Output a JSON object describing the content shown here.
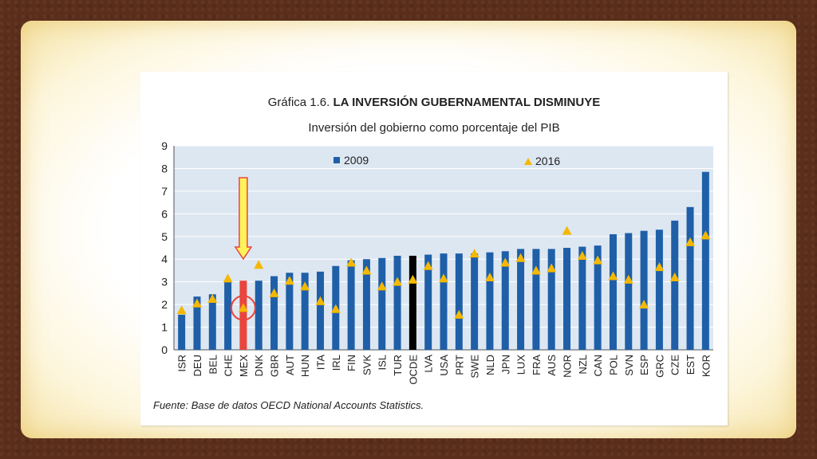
{
  "chart_data": {
    "type": "bar",
    "title_prefix": "Gráfica 1.6.",
    "title_main": "LA INVERSIÓN GUBERNAMENTAL DISMINUYE",
    "subtitle": "Inversión del gobierno como porcentaje del PIB",
    "ylim": [
      0,
      9
    ],
    "yticks": [
      0,
      1,
      2,
      3,
      4,
      5,
      6,
      7,
      8,
      9
    ],
    "grid": true,
    "legend_position": "top",
    "categories": [
      "ISR",
      "DEU",
      "BEL",
      "CHE",
      "MEX",
      "DNK",
      "GBR",
      "AUT",
      "HUN",
      "ITA",
      "IRL",
      "FIN",
      "SVK",
      "ISL",
      "TUR",
      "OCDE",
      "LVA",
      "USA",
      "PRT",
      "SWE",
      "NLD",
      "JPN",
      "LUX",
      "FRA",
      "AUS",
      "NOR",
      "NZL",
      "CAN",
      "POL",
      "SVN",
      "ESP",
      "GRC",
      "CZE",
      "EST",
      "KOR"
    ],
    "series": [
      {
        "name": "2009",
        "kind": "bar",
        "color": "#1f5fa8",
        "values": [
          1.55,
          2.35,
          2.45,
          3.0,
          3.05,
          3.05,
          3.25,
          3.4,
          3.4,
          3.45,
          3.7,
          3.95,
          4.0,
          4.05,
          4.15,
          4.15,
          4.2,
          4.25,
          4.25,
          4.25,
          4.3,
          4.35,
          4.45,
          4.45,
          4.45,
          4.5,
          4.55,
          4.6,
          5.1,
          5.15,
          5.25,
          5.3,
          5.7,
          6.3,
          7.85
        ]
      },
      {
        "name": "2016",
        "kind": "marker",
        "color": "#f5b800",
        "values": [
          1.75,
          2.05,
          2.25,
          3.15,
          1.85,
          3.75,
          2.5,
          3.05,
          2.8,
          2.15,
          1.8,
          3.85,
          3.5,
          2.8,
          3.0,
          3.1,
          3.7,
          3.15,
          1.55,
          4.25,
          3.2,
          3.85,
          4.05,
          3.5,
          3.6,
          5.25,
          4.15,
          3.95,
          3.25,
          3.1,
          2.0,
          3.65,
          3.2,
          4.75,
          5.05
        ]
      }
    ],
    "highlight": {
      "MEX": {
        "bar_color": "#e8453c"
      },
      "OCDE": {
        "bar_color": "#000000"
      }
    },
    "annotation_colors": {
      "arrow_fill": "#fff25a",
      "arrow_stroke": "#e8453c",
      "circle": "#e8453c"
    }
  },
  "footer": {
    "source": "Fuente: Base de datos OECD National Accounts Statistics."
  }
}
